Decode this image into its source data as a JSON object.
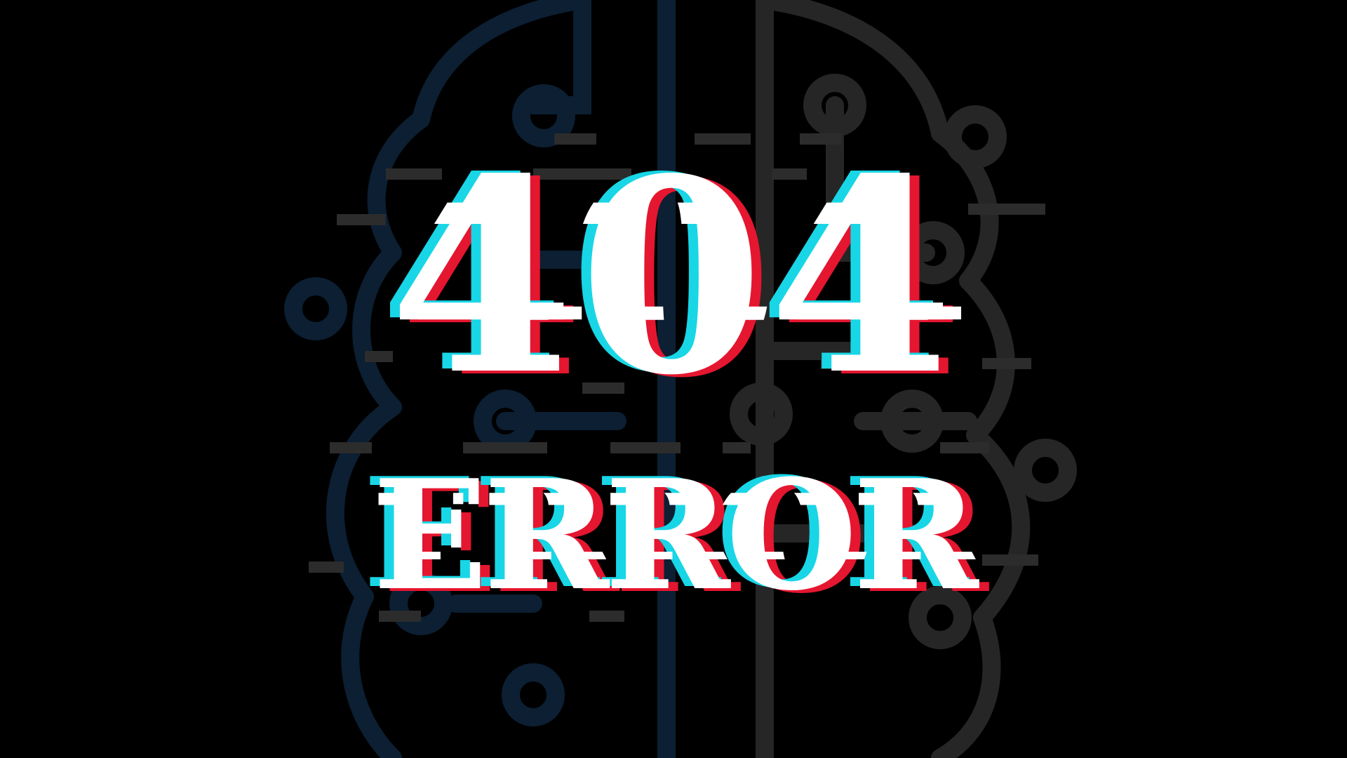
{
  "headline": {
    "code": "404",
    "word": "ERROR"
  },
  "colors": {
    "background": "#000000",
    "text": "#ffffff",
    "glitch_red": "#e5162f",
    "glitch_cyan": "#18d6e6",
    "art_blue": "#0c1f33",
    "art_gray": "#262626"
  },
  "background_art": {
    "icon": "circuit-brain-icon"
  }
}
